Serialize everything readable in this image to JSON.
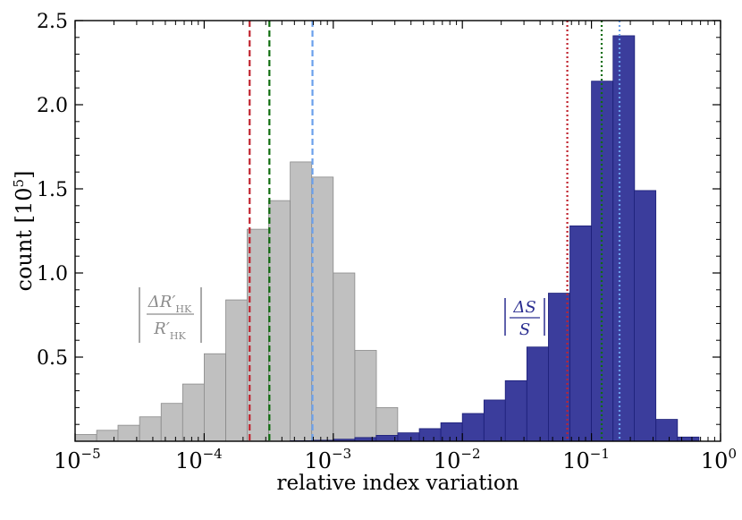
{
  "chart_data": {
    "type": "bar",
    "title": "",
    "xlabel": "relative index variation",
    "ylabel": "count [10^5]",
    "xscale": "log",
    "xlim": [
      1e-05,
      1
    ],
    "ylim": [
      0,
      2.5
    ],
    "x_ticks": [
      {
        "value": 1e-05,
        "base": "10",
        "exp": "−5"
      },
      {
        "value": 0.0001,
        "base": "10",
        "exp": "−4"
      },
      {
        "value": 0.001,
        "base": "10",
        "exp": "−3"
      },
      {
        "value": 0.01,
        "base": "10",
        "exp": "−2"
      },
      {
        "value": 0.1,
        "base": "10",
        "exp": "−1"
      },
      {
        "value": 1,
        "base": "10",
        "exp": "0"
      }
    ],
    "y_ticks": [
      {
        "value": 0.5,
        "label": "0.5"
      },
      {
        "value": 1.0,
        "label": "1.0"
      },
      {
        "value": 1.5,
        "label": "1.5"
      },
      {
        "value": 2.0,
        "label": "2.0"
      },
      {
        "value": 2.5,
        "label": "2.5"
      }
    ],
    "ylabel_main": "count [10",
    "ylabel_exp": "5",
    "ylabel_end": "]",
    "grid": false,
    "bin_width_log10": 0.1667,
    "series": [
      {
        "name": "ΔR'HK / R'HK",
        "label_numerator": "ΔR′",
        "label_denominator": "R′",
        "label_subscript": "HK",
        "color": "#c0c0c0",
        "edge": "#8a8a8a",
        "label_color": "#8c8c8c",
        "bins": [
          {
            "x0": 1e-05,
            "value": 0.04
          },
          {
            "x0": 1.47e-05,
            "value": 0.065
          },
          {
            "x0": 2.15e-05,
            "value": 0.095
          },
          {
            "x0": 3.16e-05,
            "value": 0.145
          },
          {
            "x0": 4.64e-05,
            "value": 0.225
          },
          {
            "x0": 6.81e-05,
            "value": 0.34
          },
          {
            "x0": 0.0001,
            "value": 0.52
          },
          {
            "x0": 0.000147,
            "value": 0.84
          },
          {
            "x0": 0.000215,
            "value": 1.26
          },
          {
            "x0": 0.000316,
            "value": 1.43
          },
          {
            "x0": 0.000464,
            "value": 1.66
          },
          {
            "x0": 0.000681,
            "value": 1.57
          },
          {
            "x0": 0.001,
            "value": 1.0
          },
          {
            "x0": 0.00147,
            "value": 0.54
          },
          {
            "x0": 0.00215,
            "value": 0.2
          }
        ]
      },
      {
        "name": "ΔS / S",
        "label_numerator": "ΔS",
        "label_denominator": "S",
        "color": "#3b3d9c",
        "edge": "#1c1f78",
        "label_color": "#2a2d90",
        "bins": [
          {
            "x0": 0.000464,
            "value": 0.003
          },
          {
            "x0": 0.000681,
            "value": 0.006
          },
          {
            "x0": 0.001,
            "value": 0.012
          },
          {
            "x0": 0.00147,
            "value": 0.022
          },
          {
            "x0": 0.00215,
            "value": 0.035
          },
          {
            "x0": 0.00316,
            "value": 0.05
          },
          {
            "x0": 0.00464,
            "value": 0.075
          },
          {
            "x0": 0.00681,
            "value": 0.11
          },
          {
            "x0": 0.01,
            "value": 0.165
          },
          {
            "x0": 0.0147,
            "value": 0.245
          },
          {
            "x0": 0.0215,
            "value": 0.36
          },
          {
            "x0": 0.0316,
            "value": 0.56
          },
          {
            "x0": 0.0464,
            "value": 0.88
          },
          {
            "x0": 0.0681,
            "value": 1.28
          },
          {
            "x0": 0.1,
            "value": 2.14
          },
          {
            "x0": 0.147,
            "value": 2.41
          },
          {
            "x0": 0.215,
            "value": 1.49
          },
          {
            "x0": 0.316,
            "value": 0.13
          },
          {
            "x0": 0.464,
            "value": 0.025
          }
        ]
      }
    ],
    "vlines": [
      {
        "name": "r-red",
        "x": 0.000225,
        "color": "#c0232e",
        "style": "dashed"
      },
      {
        "name": "r-green",
        "x": 0.00032,
        "color": "#0f6d0f",
        "style": "dashed"
      },
      {
        "name": "r-blue",
        "x": 0.00069,
        "color": "#6aa0ec",
        "style": "dashed"
      },
      {
        "name": "s-red",
        "x": 0.065,
        "color": "#c0232e",
        "style": "dotted"
      },
      {
        "name": "s-green",
        "x": 0.12,
        "color": "#0f6d0f",
        "style": "dotted"
      },
      {
        "name": "s-blue",
        "x": 0.165,
        "color": "#6aa0ec",
        "style": "dotted"
      }
    ]
  }
}
